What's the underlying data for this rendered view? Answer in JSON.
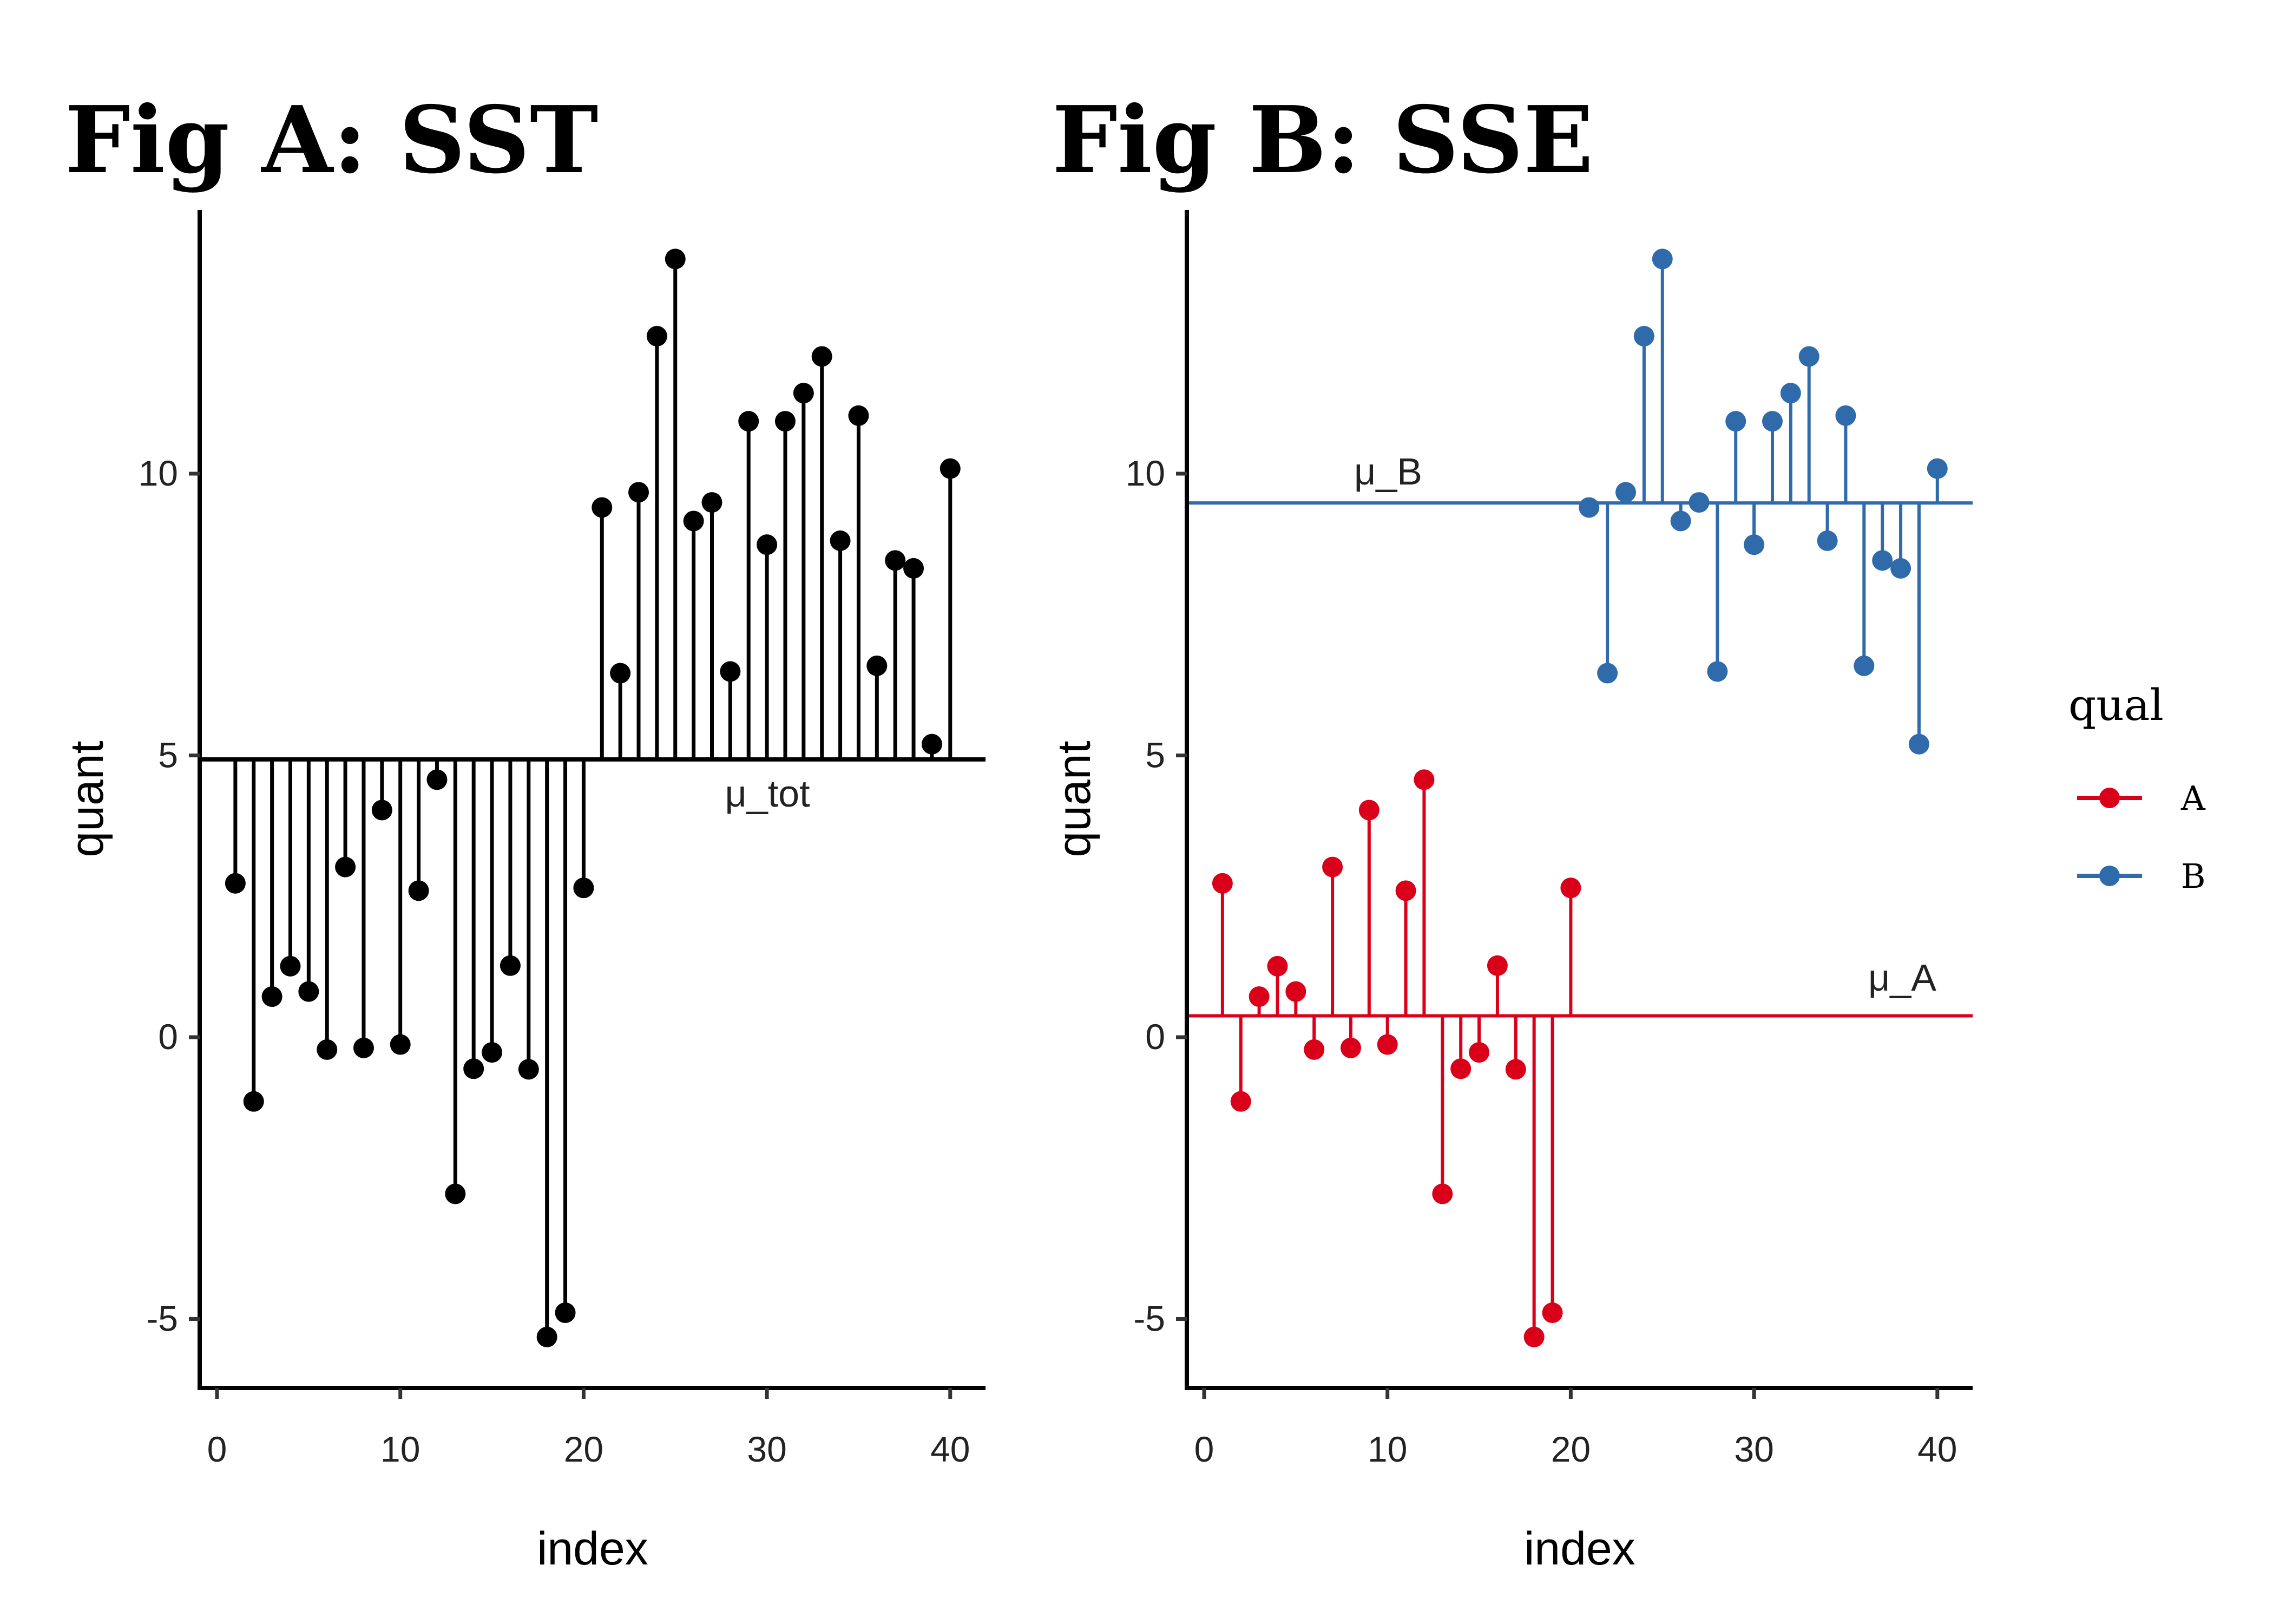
{
  "chart_data": [
    {
      "type": "lollipop",
      "title": "Fig A: SST",
      "xlabel": "index",
      "ylabel": "quant",
      "xlim": [
        -0.5,
        41
      ],
      "ylim": [
        -6.2,
        14.7
      ],
      "xticks": [
        0,
        10,
        20,
        30,
        40
      ],
      "yticks": [
        -5,
        0,
        5,
        10
      ],
      "grid": false,
      "reference_lines": [
        {
          "label": "μ_tot",
          "value": 4.93,
          "color": "#000000"
        }
      ],
      "series": [
        {
          "name": "all",
          "color": "#000000",
          "baseline": 4.93,
          "x": [
            1,
            2,
            3,
            4,
            5,
            6,
            7,
            8,
            9,
            10,
            11,
            12,
            13,
            14,
            15,
            16,
            17,
            18,
            19,
            20,
            21,
            22,
            23,
            24,
            25,
            26,
            27,
            28,
            29,
            30,
            31,
            32,
            33,
            34,
            35,
            36,
            37,
            38,
            39,
            40
          ],
          "values": [
            2.73,
            -1.14,
            0.72,
            1.26,
            0.81,
            -0.22,
            3.02,
            -0.19,
            4.03,
            -0.13,
            2.6,
            4.57,
            -2.78,
            -0.56,
            -0.27,
            1.27,
            -0.57,
            -5.32,
            -4.89,
            2.65,
            9.4,
            6.46,
            9.67,
            12.44,
            13.81,
            9.16,
            9.49,
            6.49,
            10.93,
            8.74,
            10.93,
            11.43,
            12.08,
            8.81,
            11.03,
            6.59,
            8.46,
            8.32,
            5.2,
            10.09
          ]
        }
      ]
    },
    {
      "type": "lollipop",
      "title": "Fig B: SSE",
      "xlabel": "index",
      "ylabel": "quant",
      "xlim": [
        -0.5,
        41
      ],
      "ylim": [
        -6.2,
        14.7
      ],
      "xticks": [
        0,
        10,
        20,
        30,
        40
      ],
      "yticks": [
        -5,
        0,
        5,
        10
      ],
      "grid": false,
      "legend": {
        "title": "qual",
        "position": "right",
        "entries": [
          "A",
          "B"
        ]
      },
      "reference_lines": [
        {
          "label": "μ_A",
          "value": 0.38,
          "color": "#DA0019"
        },
        {
          "label": "μ_B",
          "value": 9.48,
          "color": "#2F6BAA"
        }
      ],
      "series": [
        {
          "name": "A",
          "color": "#DA0019",
          "baseline": 0.38,
          "x": [
            1,
            2,
            3,
            4,
            5,
            6,
            7,
            8,
            9,
            10,
            11,
            12,
            13,
            14,
            15,
            16,
            17,
            18,
            19,
            20
          ],
          "values": [
            2.73,
            -1.14,
            0.72,
            1.26,
            0.81,
            -0.22,
            3.02,
            -0.19,
            4.03,
            -0.13,
            2.6,
            4.57,
            -2.78,
            -0.56,
            -0.27,
            1.27,
            -0.57,
            -5.32,
            -4.89,
            2.65
          ]
        },
        {
          "name": "B",
          "color": "#2F6BAA",
          "baseline": 9.48,
          "x": [
            21,
            22,
            23,
            24,
            25,
            26,
            27,
            28,
            29,
            30,
            31,
            32,
            33,
            34,
            35,
            36,
            37,
            38,
            39,
            40
          ],
          "values": [
            9.4,
            6.46,
            9.67,
            12.44,
            13.81,
            9.16,
            9.49,
            6.49,
            10.93,
            8.74,
            10.93,
            11.43,
            12.08,
            8.81,
            11.03,
            6.59,
            8.46,
            8.32,
            5.2,
            10.09
          ]
        }
      ]
    }
  ]
}
